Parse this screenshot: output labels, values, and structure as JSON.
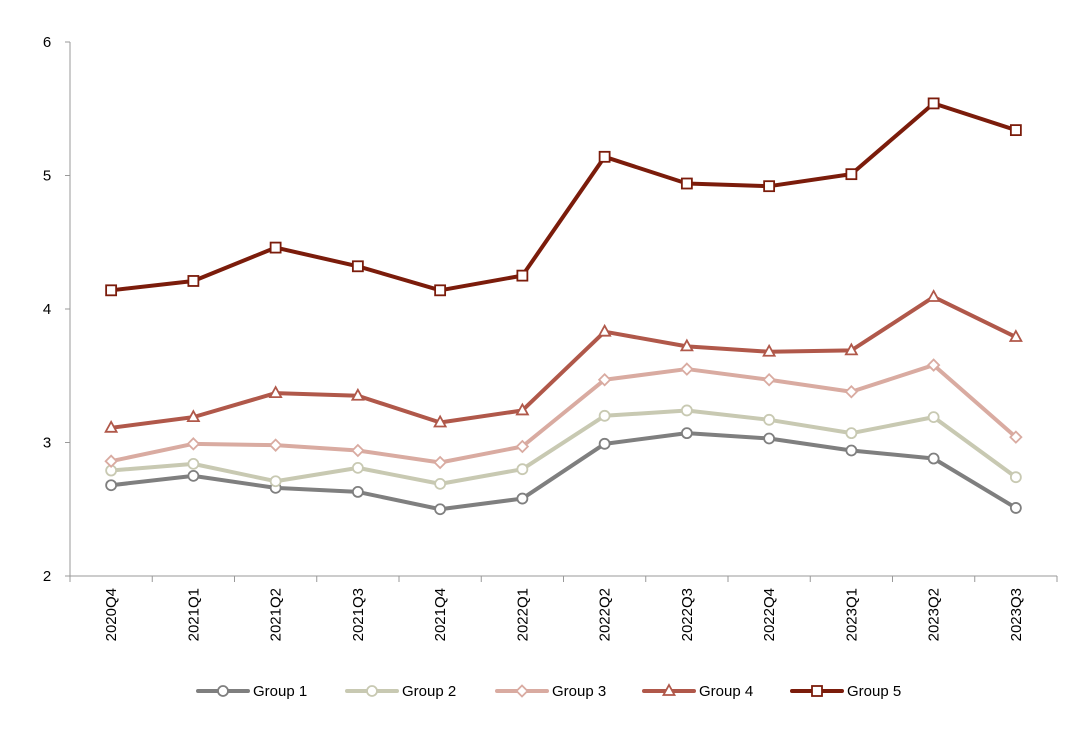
{
  "chart_data": {
    "type": "line",
    "title": "",
    "xlabel": "",
    "ylabel": "",
    "ylim": [
      2,
      6
    ],
    "yticks": [
      "2",
      "3",
      "4",
      "5",
      "6"
    ],
    "grid": false,
    "legend_position": "bottom",
    "categories": [
      "2020Q4",
      "2021Q1",
      "2021Q2",
      "2021Q3",
      "2021Q4",
      "2022Q1",
      "2022Q2",
      "2022Q3",
      "2022Q4",
      "2023Q1",
      "2023Q2",
      "2023Q3"
    ],
    "series": [
      {
        "name": "Group 1",
        "color": "#7f7f7f",
        "marker": "circle",
        "values": [
          2.68,
          2.75,
          2.66,
          2.63,
          2.5,
          2.58,
          2.99,
          3.07,
          3.03,
          2.94,
          2.88,
          2.51
        ]
      },
      {
        "name": "Group 2",
        "color": "#c8c9b2",
        "marker": "circle",
        "values": [
          2.79,
          2.84,
          2.71,
          2.81,
          2.69,
          2.8,
          3.2,
          3.24,
          3.17,
          3.07,
          3.19,
          2.74
        ]
      },
      {
        "name": "Group 3",
        "color": "#d9aba1",
        "marker": "diamond",
        "values": [
          2.86,
          2.99,
          2.98,
          2.94,
          2.85,
          2.97,
          3.47,
          3.55,
          3.47,
          3.38,
          3.58,
          3.04
        ]
      },
      {
        "name": "Group 4",
        "color": "#b0584a",
        "marker": "triangle",
        "values": [
          3.11,
          3.19,
          3.37,
          3.35,
          3.15,
          3.24,
          3.83,
          3.72,
          3.68,
          3.69,
          4.09,
          3.79
        ]
      },
      {
        "name": "Group 5",
        "color": "#7b1c0b",
        "marker": "square",
        "values": [
          4.14,
          4.21,
          4.46,
          4.32,
          4.14,
          4.25,
          5.14,
          4.94,
          4.92,
          5.01,
          5.54,
          5.34
        ]
      }
    ]
  }
}
